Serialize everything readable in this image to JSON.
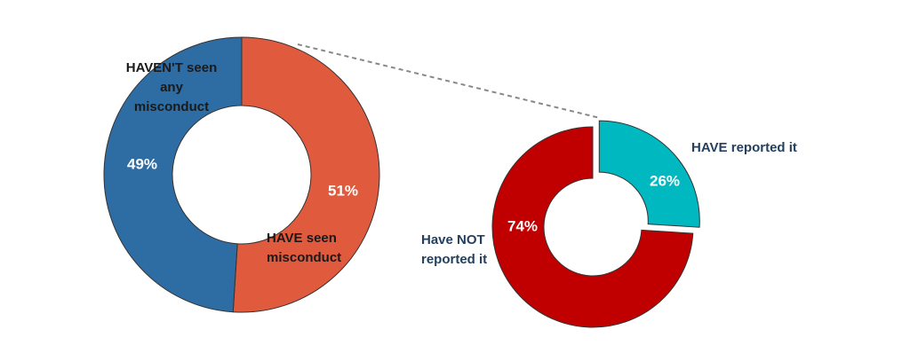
{
  "chart_data": [
    {
      "type": "pie",
      "categories": [
        "HAVE seen misconduct",
        "HAVEN'T seen any misconduct"
      ],
      "values": [
        51,
        49
      ],
      "value_labels": [
        "51%",
        "49%"
      ],
      "colors": [
        "#e05a3e",
        "#2e6ca4"
      ]
    },
    {
      "type": "pie",
      "categories": [
        "HAVE reported it",
        "Have NOT reported it"
      ],
      "values": [
        26,
        74
      ],
      "value_labels": [
        "26%",
        "74%"
      ],
      "colors": [
        "#00b8c0",
        "#c00000"
      ]
    }
  ]
}
